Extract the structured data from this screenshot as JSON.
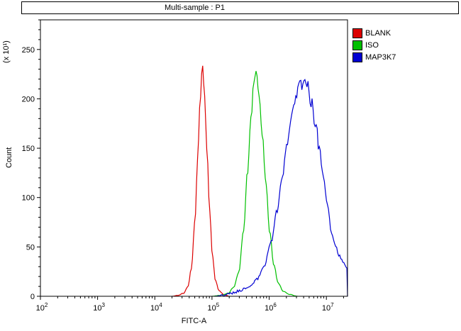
{
  "chart_data": {
    "type": "line",
    "title": "Multi-sample : P1",
    "xlabel": "FITC-A",
    "ylabel": "Count",
    "y_multiplier": "(x 10¹)",
    "x_scale": "log",
    "x_log_range": [
      2,
      7.37
    ],
    "ylim": [
      0,
      280
    ],
    "y_ticks": [
      0,
      50,
      100,
      150,
      200,
      250
    ],
    "y_minor_step": 10,
    "x_tick_exponents": [
      2,
      3,
      4,
      5,
      6,
      7
    ],
    "grid": false,
    "legend_position": "top-right-outside",
    "series": [
      {
        "name": "BLANK",
        "color": "#dc0000",
        "noise": 0.015,
        "noise_add": 0.3,
        "points": [
          [
            4.3,
            0
          ],
          [
            4.42,
            1
          ],
          [
            4.5,
            3
          ],
          [
            4.58,
            10
          ],
          [
            4.64,
            28
          ],
          [
            4.7,
            75
          ],
          [
            4.75,
            140
          ],
          [
            4.79,
            198
          ],
          [
            4.83,
            232
          ],
          [
            4.87,
            205
          ],
          [
            4.91,
            150
          ],
          [
            4.96,
            85
          ],
          [
            5.01,
            40
          ],
          [
            5.06,
            16
          ],
          [
            5.12,
            6
          ],
          [
            5.2,
            2
          ],
          [
            5.3,
            0
          ]
        ]
      },
      {
        "name": "ISO",
        "color": "#00c000",
        "noise": 0.02,
        "noise_add": 0.3,
        "points": [
          [
            5.0,
            0
          ],
          [
            5.15,
            1
          ],
          [
            5.28,
            3
          ],
          [
            5.38,
            9
          ],
          [
            5.47,
            25
          ],
          [
            5.55,
            65
          ],
          [
            5.62,
            125
          ],
          [
            5.68,
            180
          ],
          [
            5.73,
            215
          ],
          [
            5.77,
            225
          ],
          [
            5.82,
            205
          ],
          [
            5.88,
            165
          ],
          [
            5.94,
            115
          ],
          [
            6.01,
            65
          ],
          [
            6.08,
            32
          ],
          [
            6.16,
            13
          ],
          [
            6.25,
            5
          ],
          [
            6.35,
            2
          ],
          [
            6.5,
            0
          ]
        ]
      },
      {
        "name": "MAP3K7",
        "color": "#0000d2",
        "noise": 0.035,
        "noise_add": 1.2,
        "points": [
          [
            5.05,
            0
          ],
          [
            5.2,
            1
          ],
          [
            5.35,
            3
          ],
          [
            5.5,
            6
          ],
          [
            5.65,
            10
          ],
          [
            5.8,
            18
          ],
          [
            5.92,
            32
          ],
          [
            6.03,
            55
          ],
          [
            6.13,
            85
          ],
          [
            6.22,
            118
          ],
          [
            6.31,
            152
          ],
          [
            6.4,
            182
          ],
          [
            6.48,
            203
          ],
          [
            6.55,
            214
          ],
          [
            6.61,
            218
          ],
          [
            6.67,
            212
          ],
          [
            6.74,
            198
          ],
          [
            6.81,
            176
          ],
          [
            6.88,
            148
          ],
          [
            6.95,
            118
          ],
          [
            7.02,
            90
          ],
          [
            7.09,
            66
          ],
          [
            7.16,
            50
          ],
          [
            7.23,
            40
          ],
          [
            7.3,
            33
          ],
          [
            7.37,
            28
          ]
        ]
      }
    ]
  }
}
